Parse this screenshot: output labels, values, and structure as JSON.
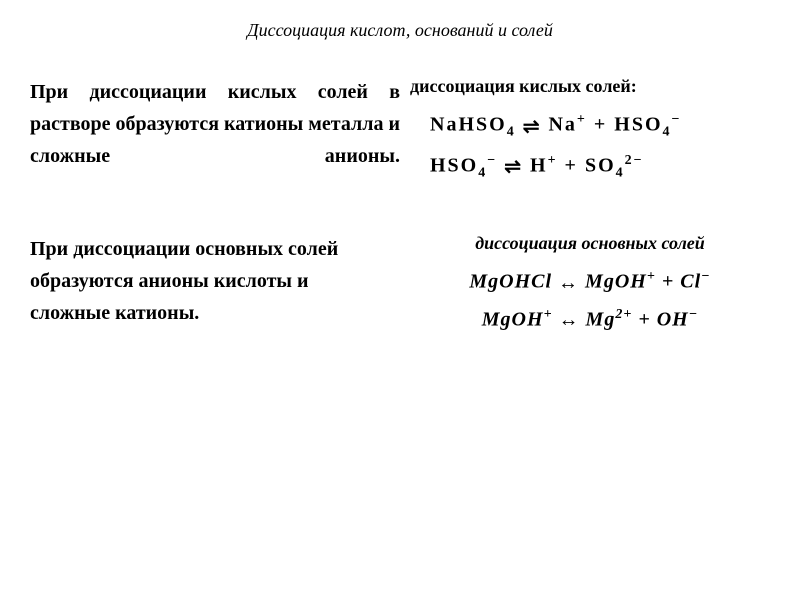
{
  "title": "Диссоциация кислот, оснований и солей",
  "section1": {
    "text": "При диссоциации кислых солей в растворе образуются катионы металла и сложные анионы.",
    "heading": "диссоциация кислых солей:",
    "equation1_left": "NaHSO",
    "equation1_sub1": "4",
    "equation1_arrow": "⇌",
    "equation1_right1": "Na",
    "equation1_sup1": "+",
    "equation1_plus": " + ",
    "equation1_right2": "HSO",
    "equation1_sub2": "4",
    "equation1_sup2": "−",
    "equation2_left": "HSO",
    "equation2_sub1": "4",
    "equation2_sup1": "−",
    "equation2_arrow": " ⇌ ",
    "equation2_right1": "H",
    "equation2_sup2": "+",
    "equation2_plus": " + ",
    "equation2_right2": "SO",
    "equation2_sub2": "4",
    "equation2_sup3": "2−"
  },
  "section2": {
    "text": "При диссоциации основных солей образуются анионы кислоты и сложные катионы.",
    "heading": "диссоциация основных солей",
    "equation1_left": "MgOHCl ",
    "equation1_arrow": " ↔ ",
    "equation1_right1": "MgOH",
    "equation1_sup1": "+",
    "equation1_plus": " + ",
    "equation1_right2": "Cl",
    "equation1_sup2": "−",
    "equation2_left": "MgOH",
    "equation2_sup1": "+",
    "equation2_arrow": " ↔ ",
    "equation2_right1": "Mg",
    "equation2_sup2": "2+",
    "equation2_plus": " + ",
    "equation2_right2": "OH",
    "equation2_sup3": "−"
  },
  "colors": {
    "text": "#000000",
    "background": "#ffffff"
  },
  "typography": {
    "title_fontsize": 18,
    "body_fontsize": 20,
    "heading_fontsize": 18,
    "equation_fontsize": 20
  }
}
